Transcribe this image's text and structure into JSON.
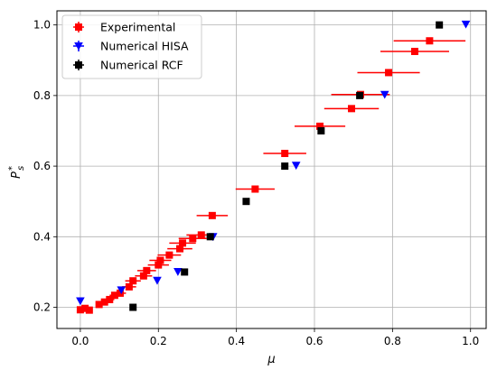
{
  "chart_data": {
    "type": "scatter",
    "title": "",
    "xlabel": "μ",
    "ylabel": "P*_s",
    "ylabel_main": "P",
    "ylabel_sup": "*",
    "ylabel_sub": "s",
    "xlim": [
      -0.06,
      1.04
    ],
    "ylim": [
      0.14,
      1.04
    ],
    "xticks": [
      0.0,
      0.2,
      0.4,
      0.6,
      0.8,
      1.0
    ],
    "yticks": [
      0.2,
      0.4,
      0.6,
      0.8,
      1.0
    ],
    "xtick_labels": [
      "0.0",
      "0.2",
      "0.4",
      "0.6",
      "0.8",
      "1.0"
    ],
    "ytick_labels": [
      "0.2",
      "0.4",
      "0.6",
      "0.8",
      "1.0"
    ],
    "grid": true,
    "legend_position": "top-left",
    "series": [
      {
        "name": "Experimental",
        "color": "#ff0000",
        "marker": "square",
        "errorbars": "horizontal",
        "points": [
          {
            "x": 0.0,
            "y": 0.193,
            "xerr": 0.004
          },
          {
            "x": 0.012,
            "y": 0.197,
            "xerr": 0.005
          },
          {
            "x": 0.023,
            "y": 0.192,
            "xerr": 0.006
          },
          {
            "x": 0.048,
            "y": 0.208,
            "xerr": 0.008
          },
          {
            "x": 0.062,
            "y": 0.215,
            "xerr": 0.01
          },
          {
            "x": 0.075,
            "y": 0.222,
            "xerr": 0.012
          },
          {
            "x": 0.088,
            "y": 0.234,
            "xerr": 0.013
          },
          {
            "x": 0.102,
            "y": 0.24,
            "xerr": 0.015
          },
          {
            "x": 0.125,
            "y": 0.258,
            "xerr": 0.018
          },
          {
            "x": 0.135,
            "y": 0.275,
            "xerr": 0.02
          },
          {
            "x": 0.162,
            "y": 0.289,
            "xerr": 0.022
          },
          {
            "x": 0.17,
            "y": 0.304,
            "xerr": 0.024
          },
          {
            "x": 0.2,
            "y": 0.32,
            "xerr": 0.027
          },
          {
            "x": 0.205,
            "y": 0.333,
            "xerr": 0.028
          },
          {
            "x": 0.228,
            "y": 0.348,
            "xerr": 0.03
          },
          {
            "x": 0.255,
            "y": 0.366,
            "xerr": 0.032
          },
          {
            "x": 0.262,
            "y": 0.382,
            "xerr": 0.034
          },
          {
            "x": 0.288,
            "y": 0.395,
            "xerr": 0.036
          },
          {
            "x": 0.31,
            "y": 0.405,
            "xerr": 0.038
          },
          {
            "x": 0.338,
            "y": 0.46,
            "xerr": 0.04
          },
          {
            "x": 0.448,
            "y": 0.535,
            "xerr": 0.05
          },
          {
            "x": 0.524,
            "y": 0.636,
            "xerr": 0.055
          },
          {
            "x": 0.614,
            "y": 0.713,
            "xerr": 0.065
          },
          {
            "x": 0.695,
            "y": 0.763,
            "xerr": 0.07
          },
          {
            "x": 0.718,
            "y": 0.803,
            "xerr": 0.075
          },
          {
            "x": 0.79,
            "y": 0.865,
            "xerr": 0.08
          },
          {
            "x": 0.857,
            "y": 0.925,
            "xerr": 0.088
          },
          {
            "x": 0.895,
            "y": 0.955,
            "xerr": 0.092
          }
        ]
      },
      {
        "name": "Numerical HISA",
        "color": "#0000ff",
        "marker": "triangle-down",
        "errorbars": "none",
        "points": [
          {
            "x": 0.0,
            "y": 0.218
          },
          {
            "x": 0.105,
            "y": 0.249
          },
          {
            "x": 0.197,
            "y": 0.276
          },
          {
            "x": 0.25,
            "y": 0.301
          },
          {
            "x": 0.34,
            "y": 0.4
          },
          {
            "x": 0.553,
            "y": 0.602
          },
          {
            "x": 0.78,
            "y": 0.803
          },
          {
            "x": 0.988,
            "y": 1.002
          }
        ]
      },
      {
        "name": "Numerical RCF",
        "color": "#000000",
        "marker": "square",
        "errorbars": "none",
        "points": [
          {
            "x": 0.135,
            "y": 0.2
          },
          {
            "x": 0.267,
            "y": 0.3
          },
          {
            "x": 0.333,
            "y": 0.4
          },
          {
            "x": 0.425,
            "y": 0.5
          },
          {
            "x": 0.524,
            "y": 0.6
          },
          {
            "x": 0.617,
            "y": 0.7
          },
          {
            "x": 0.716,
            "y": 0.8
          },
          {
            "x": 0.92,
            "y": 1.0
          }
        ]
      }
    ]
  }
}
